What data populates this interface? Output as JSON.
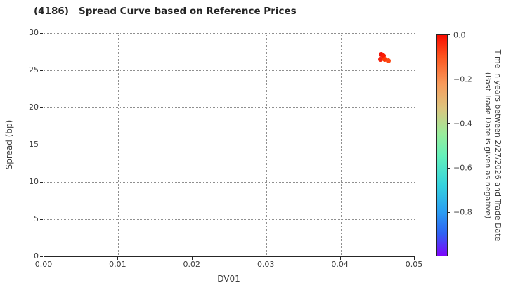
{
  "title": "(4186)   Spread Curve based on Reference Prices",
  "colors": {
    "background": "#ffffff",
    "spine": "#262626",
    "grid": "#8f8f8f",
    "text": "#3b3b3b",
    "title_text": "#262626"
  },
  "chart_data": {
    "type": "scatter",
    "title": "(4186)   Spread Curve based on Reference Prices",
    "xlabel": "DV01",
    "ylabel": "Spread (bp)",
    "xlim": [
      0.0,
      0.05
    ],
    "ylim": [
      0,
      30
    ],
    "grid": "dotted",
    "x_ticks": {
      "values": [
        0.0,
        0.01,
        0.02,
        0.03,
        0.04,
        0.05
      ],
      "labels": [
        "0.00",
        "0.01",
        "0.02",
        "0.03",
        "0.04",
        "0.05"
      ]
    },
    "y_ticks": {
      "values": [
        0,
        5,
        10,
        15,
        20,
        25,
        30
      ],
      "labels": [
        "0",
        "5",
        "10",
        "15",
        "20",
        "25",
        "30"
      ]
    },
    "points": [
      {
        "x": 0.0455,
        "y": 27.1,
        "time_color": "#ee1309"
      },
      {
        "x": 0.0458,
        "y": 26.9,
        "time_color": "#fb1b02"
      },
      {
        "x": 0.0454,
        "y": 26.5,
        "time_color": "#f42311"
      },
      {
        "x": 0.046,
        "y": 26.5,
        "time_color": "#ff3a06"
      },
      {
        "x": 0.0464,
        "y": 26.3,
        "time_color": "#fc4713"
      }
    ],
    "colorbar": {
      "label_line1": "Time in years between 2/27/2026 and Trade Date",
      "label_line2": "(Past Trade Date is given as negative)",
      "range": [
        0.0,
        -1.0
      ],
      "ticks": {
        "values": [
          0.0,
          -0.2,
          -0.4,
          -0.6,
          -0.8
        ],
        "labels": [
          "0.0",
          "−0.2",
          "−0.4",
          "−0.6",
          "−0.8"
        ]
      },
      "colormap_stops": [
        {
          "at": 0.0,
          "color": "#fa0d00"
        },
        {
          "at": 0.1,
          "color": "#fc5620"
        },
        {
          "at": 0.22,
          "color": "#f89a5b"
        },
        {
          "at": 0.33,
          "color": "#ddc47e"
        },
        {
          "at": 0.45,
          "color": "#98ed9c"
        },
        {
          "at": 0.55,
          "color": "#63f0bb"
        },
        {
          "at": 0.68,
          "color": "#35d2dd"
        },
        {
          "at": 0.8,
          "color": "#2b9ef2"
        },
        {
          "at": 0.9,
          "color": "#2f62f3"
        },
        {
          "at": 1.0,
          "color": "#7d05fb"
        }
      ]
    }
  }
}
